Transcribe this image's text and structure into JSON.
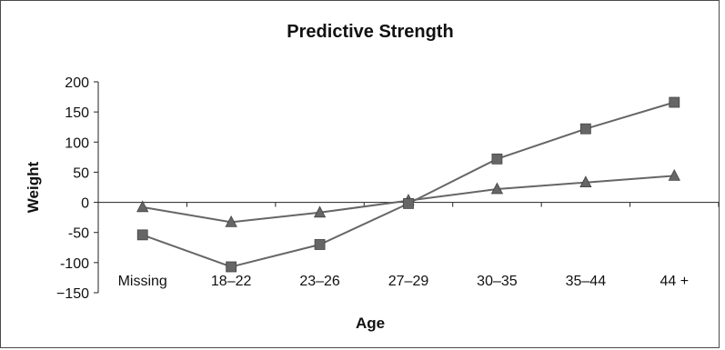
{
  "chart_data": {
    "type": "line",
    "title": "Predictive Strength",
    "xlabel": "Age",
    "ylabel": "Weight",
    "categories": [
      "Missing",
      "18–22",
      "23–26",
      "27–29",
      "30–35",
      "35–44",
      "44 +"
    ],
    "ylim": [
      -150,
      200
    ],
    "yticks": [
      200,
      150,
      100,
      50,
      0,
      -50,
      -100,
      -150
    ],
    "yticks_text": [
      "200",
      "150",
      "100",
      "50",
      "0",
      "-50",
      "-100",
      "−150"
    ],
    "grid": false,
    "legend": "none",
    "series": [
      {
        "marker": "triangle",
        "color": "#666666",
        "values": [
          -8,
          -33,
          -17,
          3,
          22,
          33,
          44
        ]
      },
      {
        "marker": "square",
        "color": "#666666",
        "values": [
          -54,
          -107,
          -70,
          -2,
          72,
          122,
          166
        ]
      }
    ]
  }
}
